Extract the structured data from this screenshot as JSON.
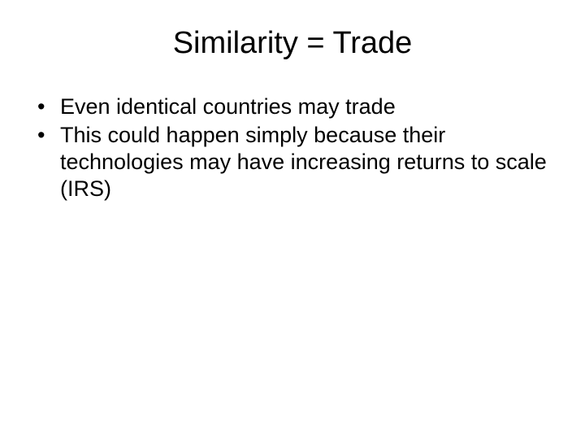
{
  "slide": {
    "title": "Similarity = Trade",
    "bullets": [
      "Even identical countries may trade",
      "This could happen simply because their technologies may have increasing returns to scale (IRS)"
    ],
    "title_fontsize": 38,
    "body_fontsize": 27,
    "background_color": "#ffffff",
    "text_color": "#000000",
    "font_family": "Arial"
  }
}
